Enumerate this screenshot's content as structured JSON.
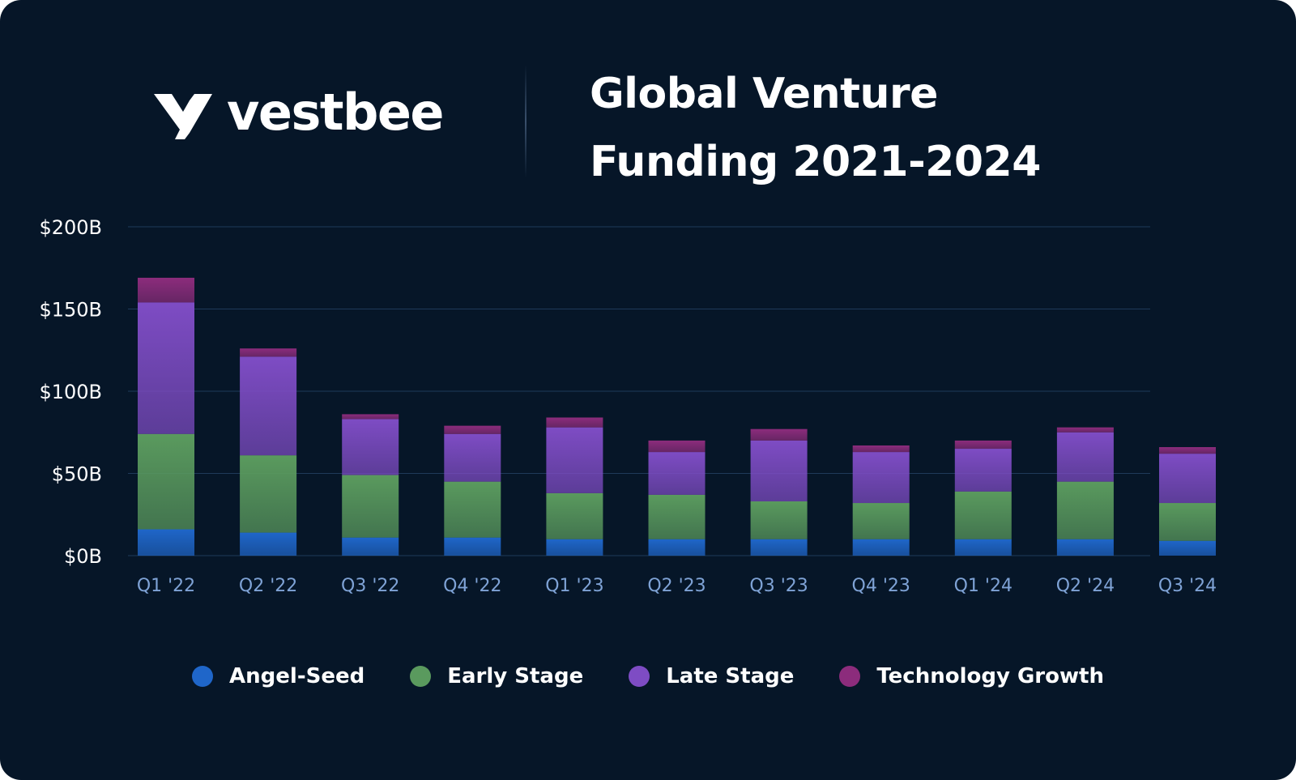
{
  "logo": {
    "text": "vestbee",
    "icon": "vestbee-v-icon"
  },
  "title": {
    "line1": "Global Venture",
    "line2": "Funding 2021-2024"
  },
  "colors": {
    "background": "#061628",
    "angel_seed": "#1f66c9",
    "early_stage": "#5a9a5e",
    "late_stage": "#7e4cc4",
    "technology_growth": "#8c2c7c",
    "axis_text": "#ffffff",
    "tick_text": "#7fa3d6",
    "grid": "#1f3a5a"
  },
  "chart_data": {
    "type": "bar",
    "stacked": true,
    "title": "Global Venture Funding 2021-2024",
    "xlabel": "",
    "ylabel": "",
    "ylim": [
      0,
      200
    ],
    "yticks": [
      "$0B",
      "$50B",
      "$100B",
      "$150B",
      "$200B"
    ],
    "grid": true,
    "legend_position": "bottom",
    "categories": [
      "Q1 '22",
      "Q2 '22",
      "Q3 '22",
      "Q4 '22",
      "Q1 '23",
      "Q2 '23",
      "Q3 '23",
      "Q4 '23",
      "Q1 '24",
      "Q2 '24",
      "Q3 '24"
    ],
    "series": [
      {
        "name": "Angel-Seed",
        "values": [
          16,
          14,
          11,
          11,
          10,
          10,
          10,
          10,
          10,
          10,
          9
        ]
      },
      {
        "name": "Early Stage",
        "values": [
          58,
          47,
          38,
          34,
          28,
          27,
          23,
          22,
          29,
          35,
          23
        ]
      },
      {
        "name": "Late Stage",
        "values": [
          80,
          60,
          34,
          29,
          40,
          26,
          37,
          31,
          26,
          30,
          30
        ]
      },
      {
        "name": "Technology Growth",
        "values": [
          15,
          5,
          3,
          5,
          6,
          7,
          7,
          4,
          5,
          3,
          4
        ]
      }
    ]
  }
}
